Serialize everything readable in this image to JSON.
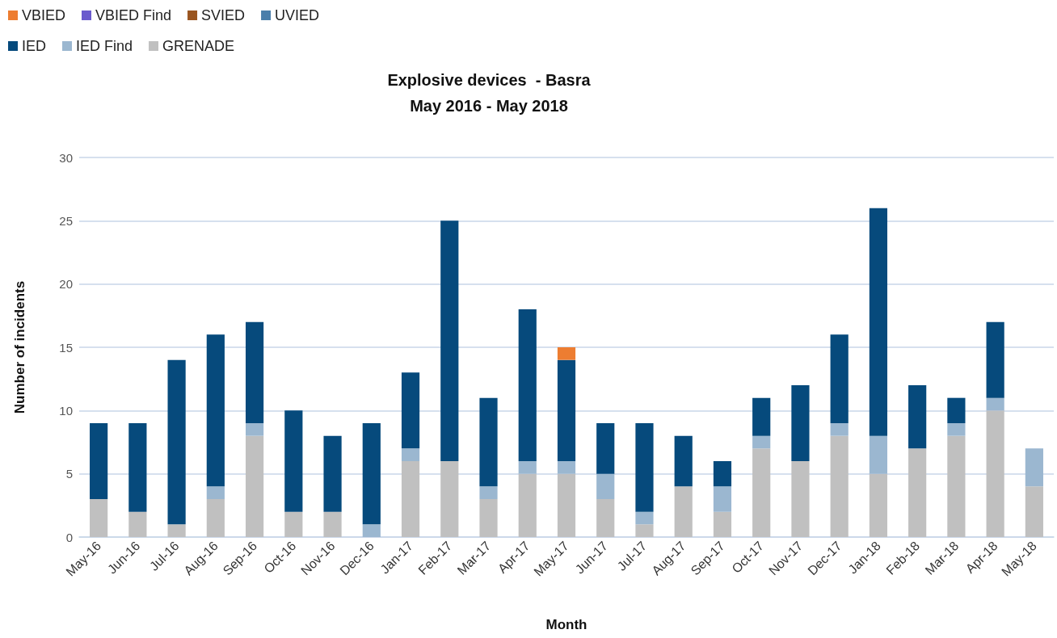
{
  "chart_data": {
    "type": "bar",
    "title": "Explosive devices  - Basra\nMay 2016 - May 2018",
    "xlabel": "Month",
    "ylabel": "Number of incidents",
    "categories": [
      "May-16",
      "Jun-16",
      "Jul-16",
      "Aug-16",
      "Sep-16",
      "Oct-16",
      "Nov-16",
      "Dec-16",
      "Jan-17",
      "Feb-17",
      "Mar-17",
      "Apr-17",
      "May-17",
      "Jun-17",
      "Jul-17",
      "Aug-17",
      "Sep-17",
      "Oct-17",
      "Nov-17",
      "Dec-17",
      "Jan-18",
      "Feb-18",
      "Mar-18",
      "Apr-18",
      "May-18"
    ],
    "stacked": true,
    "ylim": [
      0,
      30
    ],
    "yticks": [
      0,
      5,
      10,
      15,
      20,
      25,
      30
    ],
    "grid": "y",
    "legend": "top left",
    "series": [
      {
        "name": "GRENADE",
        "color": "#c0c0c0",
        "values": [
          3,
          2,
          1,
          3,
          8,
          2,
          2,
          0,
          6,
          6,
          3,
          5,
          5,
          3,
          1,
          4,
          2,
          7,
          6,
          8,
          5,
          7,
          8,
          10,
          4
        ]
      },
      {
        "name": "IED Find",
        "color": "#9bb7d0",
        "values": [
          0,
          0,
          0,
          1,
          1,
          0,
          0,
          1,
          1,
          0,
          1,
          1,
          1,
          2,
          1,
          0,
          2,
          1,
          0,
          1,
          3,
          0,
          1,
          1,
          3
        ]
      },
      {
        "name": "IED",
        "color": "#064a7c",
        "values": [
          6,
          7,
          13,
          12,
          8,
          8,
          6,
          8,
          6,
          19,
          7,
          12,
          8,
          4,
          7,
          4,
          2,
          3,
          6,
          7,
          18,
          5,
          2,
          6,
          0
        ]
      },
      {
        "name": "UVIED",
        "color": "#4a7eaa",
        "values": [
          0,
          0,
          0,
          0,
          0,
          0,
          0,
          0,
          0,
          0,
          0,
          0,
          0,
          0,
          0,
          0,
          0,
          0,
          0,
          0,
          0,
          0,
          0,
          0,
          0
        ]
      },
      {
        "name": "SVIED",
        "color": "#9a5520",
        "values": [
          0,
          0,
          0,
          0,
          0,
          0,
          0,
          0,
          0,
          0,
          0,
          0,
          0,
          0,
          0,
          0,
          0,
          0,
          0,
          0,
          0,
          0,
          0,
          0,
          0
        ]
      },
      {
        "name": "VBIED Find",
        "color": "#6a5acd",
        "values": [
          0,
          0,
          0,
          0,
          0,
          0,
          0,
          0,
          0,
          0,
          0,
          0,
          0,
          0,
          0,
          0,
          0,
          0,
          0,
          0,
          0,
          0,
          0,
          0,
          0
        ]
      },
      {
        "name": "VBIED",
        "color": "#ed7d31",
        "values": [
          0,
          0,
          0,
          0,
          0,
          0,
          0,
          0,
          0,
          0,
          0,
          0,
          1,
          0,
          0,
          0,
          0,
          0,
          0,
          0,
          0,
          0,
          0,
          0,
          0
        ]
      }
    ]
  }
}
